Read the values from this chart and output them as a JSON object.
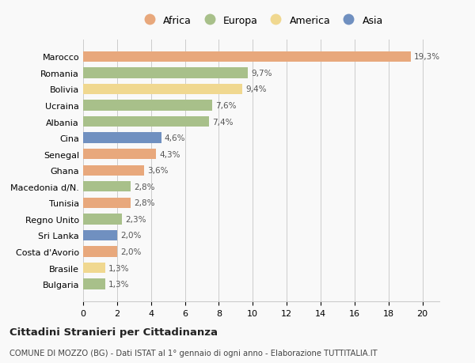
{
  "countries": [
    "Marocco",
    "Romania",
    "Bolivia",
    "Ucraina",
    "Albania",
    "Cina",
    "Senegal",
    "Ghana",
    "Macedonia d/N.",
    "Tunisia",
    "Regno Unito",
    "Sri Lanka",
    "Costa d'Avorio",
    "Brasile",
    "Bulgaria"
  ],
  "values": [
    19.3,
    9.7,
    9.4,
    7.6,
    7.4,
    4.6,
    4.3,
    3.6,
    2.8,
    2.8,
    2.3,
    2.0,
    2.0,
    1.3,
    1.3
  ],
  "labels": [
    "19,3%",
    "9,7%",
    "9,4%",
    "7,6%",
    "7,4%",
    "4,6%",
    "4,3%",
    "3,6%",
    "2,8%",
    "2,8%",
    "2,3%",
    "2,0%",
    "2,0%",
    "1,3%",
    "1,3%"
  ],
  "continents": [
    "Africa",
    "Europa",
    "America",
    "Europa",
    "Europa",
    "Asia",
    "Africa",
    "Africa",
    "Europa",
    "Africa",
    "Europa",
    "Asia",
    "Africa",
    "America",
    "Europa"
  ],
  "colors": {
    "Africa": "#E8A87C",
    "Europa": "#A8C08A",
    "America": "#F0D890",
    "Asia": "#7090C0"
  },
  "legend_order": [
    "Africa",
    "Europa",
    "America",
    "Asia"
  ],
  "xlim": [
    0,
    21
  ],
  "xticks": [
    0,
    2,
    4,
    6,
    8,
    10,
    12,
    14,
    16,
    18,
    20
  ],
  "title": "Cittadini Stranieri per Cittadinanza",
  "subtitle": "COMUNE DI MOZZO (BG) - Dati ISTAT al 1° gennaio di ogni anno - Elaborazione TUTTITALIA.IT",
  "bg_color": "#f9f9f9",
  "grid_color": "#cccccc"
}
